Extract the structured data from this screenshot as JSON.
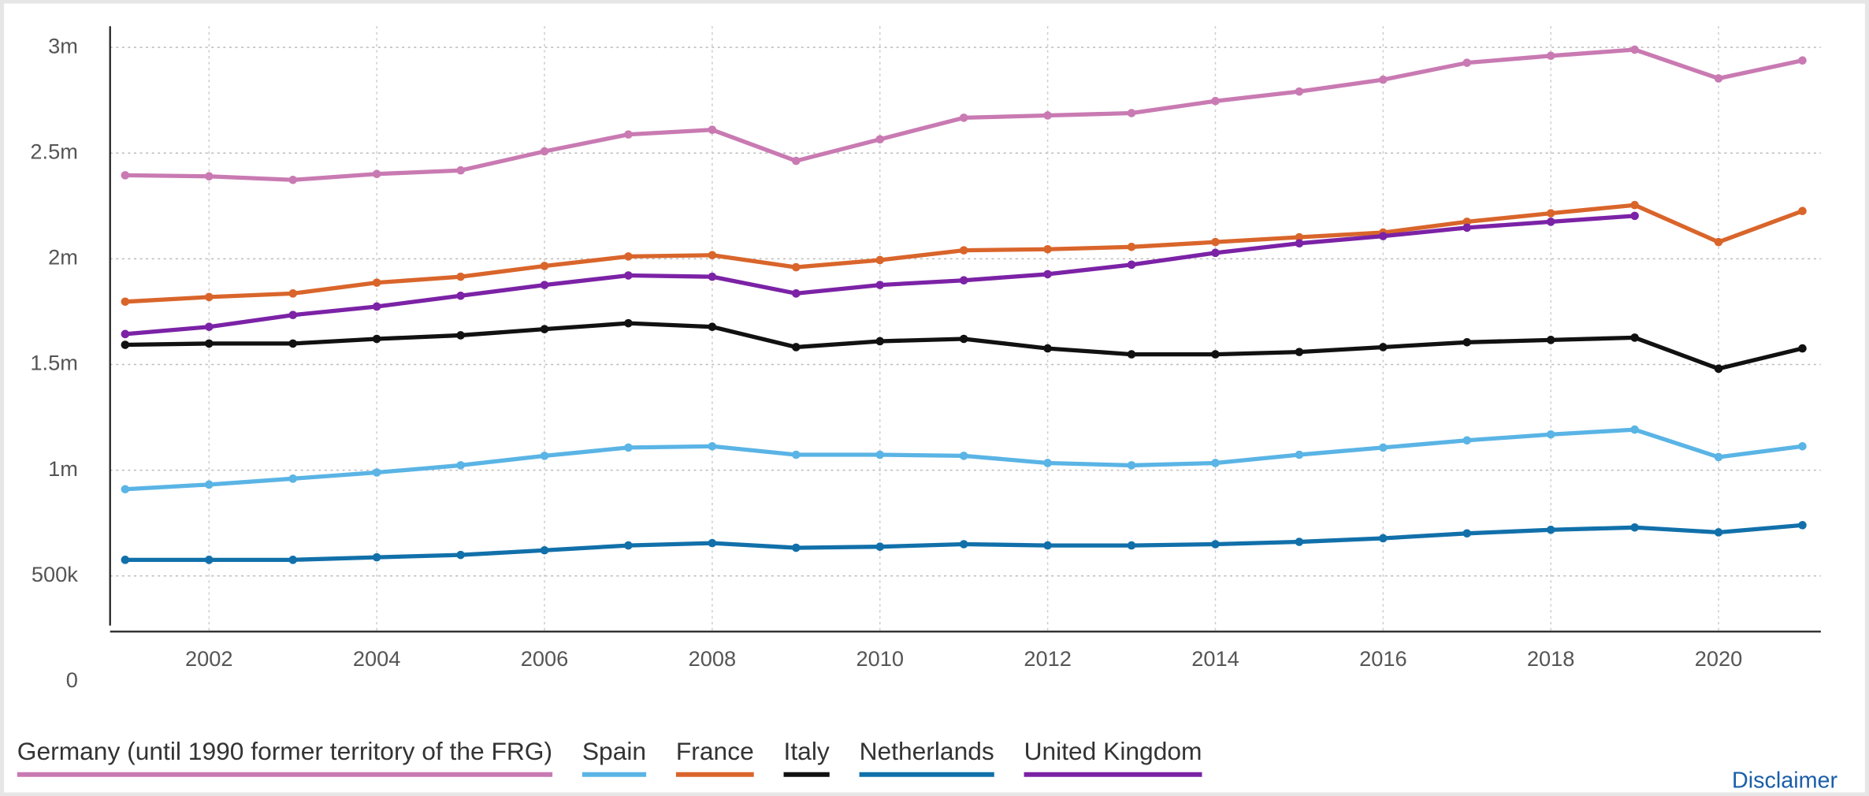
{
  "chart_data": {
    "type": "line",
    "x": [
      2001,
      2002,
      2003,
      2004,
      2005,
      2006,
      2007,
      2008,
      2009,
      2010,
      2011,
      2012,
      2013,
      2014,
      2015,
      2016,
      2017,
      2018,
      2019,
      2020,
      2021
    ],
    "xlim": [
      2000.82,
      2021.22
    ],
    "xticks": [
      2002,
      2004,
      2006,
      2008,
      2010,
      2012,
      2014,
      2016,
      2018,
      2020
    ],
    "ylim": [
      0,
      3100000
    ],
    "yticks": [
      0,
      {
        "value": 500000,
        "label": "500k"
      },
      {
        "value": 1000000,
        "label": "1m"
      },
      {
        "value": 1500000,
        "label": "1.5m"
      },
      {
        "value": 2000000,
        "label": "2m"
      },
      {
        "value": 2500000,
        "label": "2.5m"
      },
      {
        "value": 3000000,
        "label": "3m"
      }
    ],
    "grid": true,
    "legend": "bottom",
    "series": [
      {
        "name": "Germany (until 1990 former territory of the FRG)",
        "color": "#c97ab2",
        "values": [
          2395000,
          2390000,
          2373000,
          2401000,
          2418000,
          2508000,
          2588000,
          2610000,
          2463000,
          2565000,
          2667000,
          2678000,
          2689000,
          2746000,
          2791000,
          2847000,
          2927000,
          2960000,
          2989000,
          2853000,
          2938000
        ]
      },
      {
        "name": "Spain",
        "color": "#5ab4e5",
        "values": [
          910000,
          932000,
          960000,
          989000,
          1023000,
          1068000,
          1107000,
          1113000,
          1073000,
          1073000,
          1068000,
          1034000,
          1023000,
          1034000,
          1073000,
          1107000,
          1141000,
          1169000,
          1192000,
          1062000,
          1113000
        ]
      },
      {
        "name": "France",
        "color": "#d9652b",
        "values": [
          1797000,
          1819000,
          1836000,
          1887000,
          1915000,
          1966000,
          2011000,
          2017000,
          1960000,
          1994000,
          2040000,
          2045000,
          2056000,
          2079000,
          2102000,
          2124000,
          2175000,
          2215000,
          2254000,
          2079000,
          2226000
        ]
      },
      {
        "name": "Italy",
        "color": "#111111",
        "values": [
          1593000,
          1599000,
          1599000,
          1621000,
          1638000,
          1667000,
          1695000,
          1678000,
          1582000,
          1610000,
          1621000,
          1576000,
          1548000,
          1548000,
          1559000,
          1582000,
          1605000,
          1616000,
          1627000,
          1480000,
          1576000
        ]
      },
      {
        "name": "Netherlands",
        "color": "#1170aa",
        "values": [
          576000,
          576000,
          576000,
          588000,
          599000,
          621000,
          644000,
          655000,
          633000,
          638000,
          650000,
          644000,
          644000,
          650000,
          661000,
          678000,
          701000,
          718000,
          729000,
          706000,
          740000
        ]
      },
      {
        "name": "United Kingdom",
        "color": "#7b22a6",
        "values": [
          1644000,
          1678000,
          1734000,
          1774000,
          1825000,
          1876000,
          1921000,
          1915000,
          1836000,
          1876000,
          1898000,
          1927000,
          1972000,
          2028000,
          2073000,
          2107000,
          2147000,
          2175000,
          2203000,
          null,
          null
        ]
      }
    ]
  },
  "disclaimer": "Disclaimer"
}
